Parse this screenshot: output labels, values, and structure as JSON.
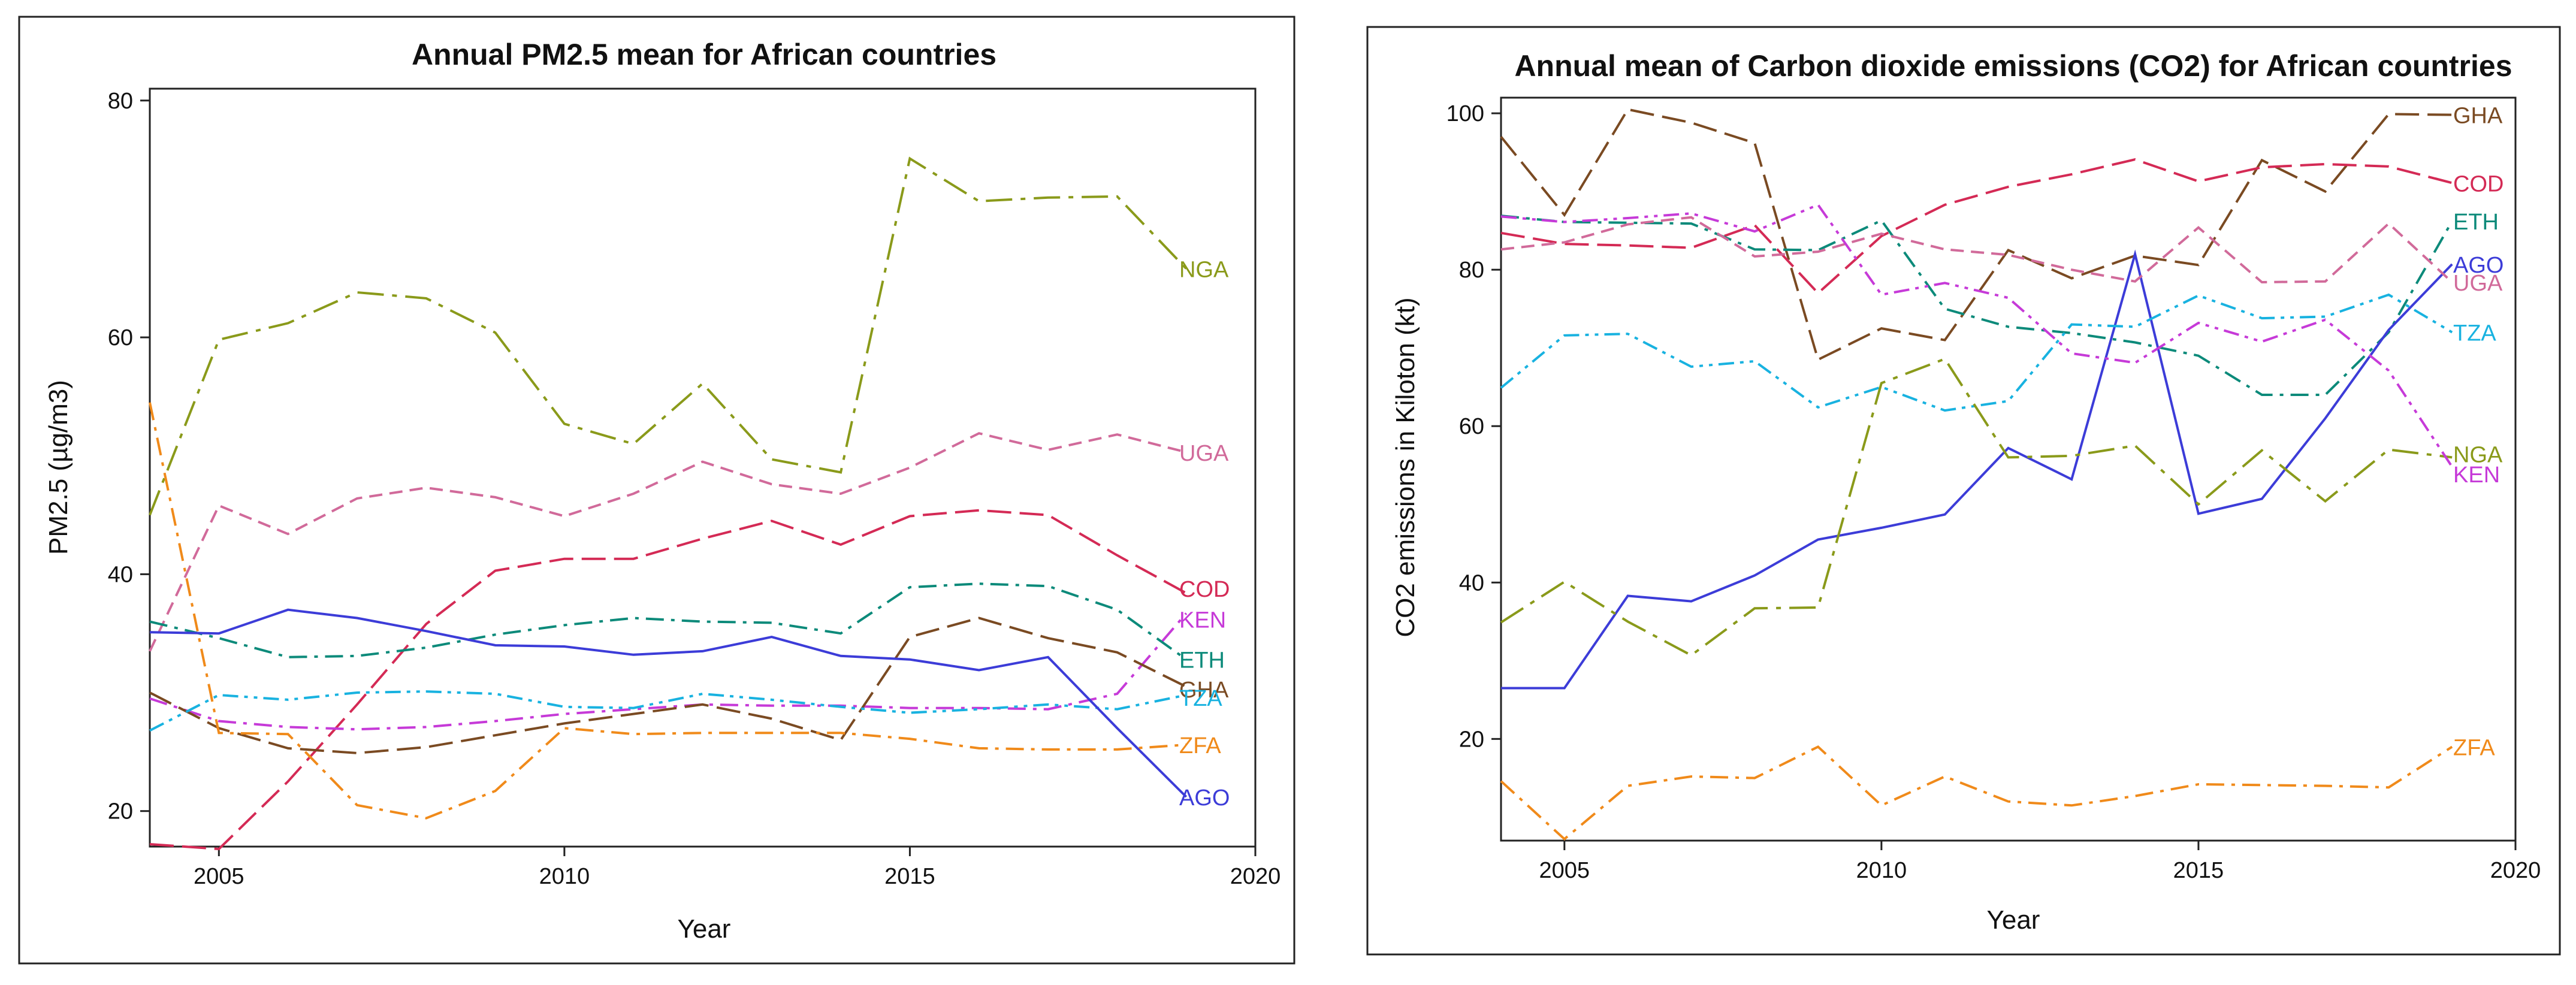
{
  "chart_data": [
    {
      "type": "line",
      "title": "Annual PM2.5 mean for African countries",
      "xlabel": "Year",
      "ylabel": "PM2.5 (µg/m3)",
      "xlim": [
        2004,
        2020
      ],
      "ylim": [
        17,
        81
      ],
      "xticks": [
        2005,
        2010,
        2015,
        2020
      ],
      "yticks": [
        20,
        40,
        60,
        80
      ],
      "x": [
        2004,
        2005,
        2006,
        2007,
        2008,
        2009,
        2010,
        2011,
        2012,
        2013,
        2014,
        2015,
        2016,
        2017,
        2018,
        2019
      ],
      "series": [
        {
          "name": "NGA",
          "color": "#8a9a1a",
          "dash": "longdashdot",
          "values": [
            45,
            59.8,
            61.2,
            63.8,
            63.3,
            60.4,
            52.7,
            51,
            56.1,
            49.7,
            48.6,
            75.1,
            71.5,
            71.8,
            71.9,
            65.8
          ]
        },
        {
          "name": "UGA",
          "color": "#d16a9a",
          "dash": "dash",
          "values": [
            33.5,
            45.8,
            43.4,
            46.4,
            47.3,
            46.5,
            44.9,
            46.8,
            49.5,
            47.6,
            46.8,
            49,
            51.9,
            50.5,
            51.8,
            50.3
          ]
        },
        {
          "name": "COD",
          "color": "#d42a55",
          "dash": "longdash",
          "values": [
            17.2,
            16.8,
            22.5,
            29,
            35.8,
            40.3,
            41.3,
            41.3,
            43,
            44.5,
            42.5,
            44.9,
            45.4,
            45,
            41.6,
            38.4
          ]
        },
        {
          "name": "KEN",
          "color": "#c63ad8",
          "dash": "dashdot",
          "values": [
            29.5,
            27.6,
            27.1,
            26.9,
            27.1,
            27.6,
            28.2,
            28.6,
            29,
            28.9,
            28.9,
            28.7,
            28.7,
            28.6,
            29.9,
            36.7
          ]
        },
        {
          "name": "ETH",
          "color": "#0c8a7a",
          "dash": "dashdot",
          "values": [
            36,
            34.6,
            33,
            33.1,
            33.8,
            34.9,
            35.7,
            36.3,
            36,
            35.9,
            35,
            38.9,
            39.2,
            39,
            37,
            32.8
          ]
        },
        {
          "name": "GHA",
          "color": "#7a4a22",
          "dash": "longdash",
          "values": [
            30,
            27,
            25.3,
            24.9,
            25.4,
            26.4,
            27.4,
            28.2,
            29,
            27.8,
            26,
            34.7,
            36.3,
            34.6,
            33.4,
            30.5
          ]
        },
        {
          "name": "TZA",
          "color": "#18b2e0",
          "dash": "dashdotdot",
          "values": [
            26.8,
            29.8,
            29.4,
            30,
            30.1,
            29.9,
            28.8,
            28.7,
            29.9,
            29.4,
            28.8,
            28.3,
            28.6,
            29,
            28.6,
            29.8
          ]
        },
        {
          "name": "ZFA",
          "color": "#f08a1a",
          "dash": "dashdot",
          "values": [
            54.5,
            26.6,
            26.5,
            20.5,
            19.4,
            21.7,
            27,
            26.5,
            26.6,
            26.6,
            26.6,
            26.1,
            25.3,
            25.2,
            25.2,
            25.6
          ]
        },
        {
          "name": "AGO",
          "color": "#3c3cd8",
          "dash": "solid",
          "values": [
            35.1,
            35,
            37,
            36.3,
            35.2,
            34,
            33.9,
            33.2,
            33.5,
            34.7,
            33.1,
            32.8,
            31.9,
            33,
            27,
            21.2
          ]
        }
      ]
    },
    {
      "type": "line",
      "title": "Annual mean of Carbon dioxide emissions (CO2) for African countries",
      "xlabel": "Year",
      "ylabel": "CO2 emissions in Kiloton (kt)",
      "xlim": [
        2004,
        2020
      ],
      "ylim": [
        7,
        102
      ],
      "xticks": [
        2005,
        2010,
        2015,
        2020
      ],
      "yticks": [
        20,
        40,
        60,
        80,
        100
      ],
      "x": [
        2004,
        2005,
        2006,
        2007,
        2008,
        2009,
        2010,
        2011,
        2012,
        2013,
        2014,
        2015,
        2016,
        2017,
        2018,
        2019
      ],
      "series": [
        {
          "name": "GHA",
          "color": "#7a4a22",
          "dash": "longdash",
          "values": [
            97,
            87,
            100.5,
            98.8,
            96.2,
            68.5,
            72.5,
            71,
            82.5,
            78.9,
            81.8,
            80.6,
            94,
            90,
            99.9,
            99.8
          ]
        },
        {
          "name": "COD",
          "color": "#d42a55",
          "dash": "longdash",
          "values": [
            84.7,
            83.3,
            83.1,
            82.8,
            85.7,
            77,
            84.3,
            88.3,
            90.6,
            92.2,
            94.1,
            91.3,
            93.1,
            93.5,
            93.2,
            91.1
          ]
        },
        {
          "name": "ETH",
          "color": "#0c8a7a",
          "dash": "dashdot",
          "values": [
            86.9,
            86.1,
            86,
            85.9,
            82.6,
            82.5,
            86.3,
            75,
            72.7,
            71.9,
            70.7,
            69,
            64,
            64,
            72,
            86.2
          ]
        },
        {
          "name": "AGO",
          "color": "#3c3cd8",
          "dash": "solid",
          "values": [
            26.5,
            26.5,
            38.3,
            37.6,
            40.9,
            45.5,
            47,
            48.7,
            57.2,
            53.2,
            82,
            48.8,
            50.7,
            61,
            72.3,
            80.7
          ]
        },
        {
          "name": "UGA",
          "color": "#d16a9a",
          "dash": "dash",
          "values": [
            82.6,
            83.5,
            85.8,
            86.7,
            81.7,
            82.3,
            84.6,
            82.6,
            81.9,
            80,
            78.5,
            85.4,
            78.4,
            78.5,
            85.9,
            78.4
          ]
        },
        {
          "name": "TZA",
          "color": "#18b2e0",
          "dash": "dashdotdot",
          "values": [
            64.9,
            71.6,
            71.8,
            67.6,
            68.3,
            62.4,
            65,
            62,
            63.2,
            73,
            72.7,
            76.7,
            73.8,
            74,
            76.8,
            72
          ]
        },
        {
          "name": "NGA",
          "color": "#8a9a1a",
          "dash": "longdashdot",
          "values": [
            34.9,
            40.1,
            35,
            30.7,
            36.7,
            36.8,
            65.5,
            68.6,
            56,
            56.2,
            57.5,
            50,
            56.9,
            50.4,
            57,
            56
          ]
        },
        {
          "name": "KEN",
          "color": "#c63ad8",
          "dash": "dashdotdot",
          "values": [
            86.8,
            86.1,
            86.6,
            87.2,
            84.9,
            88.3,
            76.8,
            78.3,
            76.4,
            69.3,
            68.1,
            73.2,
            70.8,
            73.6,
            67.1,
            54.8
          ]
        },
        {
          "name": "ZFA",
          "color": "#f08a1a",
          "dash": "dashdot",
          "values": [
            14.6,
            7.2,
            14,
            15.2,
            15,
            19,
            11.5,
            15.2,
            12,
            11.5,
            12.7,
            14.2,
            14.1,
            14,
            13.8,
            19
          ]
        }
      ]
    }
  ]
}
